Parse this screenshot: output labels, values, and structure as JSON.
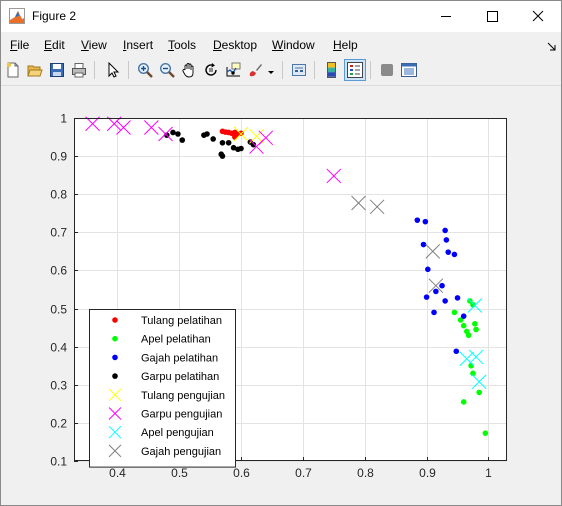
{
  "window": {
    "title": "Figure 2"
  },
  "menu": [
    {
      "key": "F",
      "rest": "ile"
    },
    {
      "key": "E",
      "rest": "dit"
    },
    {
      "key": "V",
      "rest": "iew"
    },
    {
      "key": "I",
      "rest": "nsert"
    },
    {
      "key": "T",
      "rest": "ools"
    },
    {
      "key": "D",
      "rest": "esktop"
    },
    {
      "key": "W",
      "rest": "indow"
    },
    {
      "key": "H",
      "rest": "elp"
    }
  ],
  "toolbar": [
    "new-figure-icon",
    "open-file-icon",
    "save-icon",
    "print-icon",
    "select-arrow-icon",
    "zoom-in-icon",
    "zoom-out-icon",
    "pan-hand-icon",
    "rotate-3d-icon",
    "data-cursor-icon",
    "brush-icon",
    "link-plot-icon",
    "colorbar-icon",
    "legend-icon",
    "hide-plot-tools-icon",
    "show-plot-tools-icon"
  ],
  "chart_data": {
    "type": "scatter",
    "title": "",
    "xlabel": "",
    "ylabel": "",
    "xlim": [
      0.33,
      1.03
    ],
    "ylim": [
      0.1,
      1.0
    ],
    "xticks": [
      "0.4",
      "0.5",
      "0.6",
      "0.7",
      "0.8",
      "0.9",
      "1"
    ],
    "yticks": [
      "0.1",
      "0.2",
      "0.3",
      "0.4",
      "0.5",
      "0.6",
      "0.7",
      "0.8",
      "0.9",
      "1"
    ],
    "grid": true,
    "legend_position": "bottom-left",
    "series": [
      {
        "name": "Tulang pelatihan",
        "marker": "dot",
        "color": "#ff0000",
        "points": [
          [
            0.57,
            0.965
          ],
          [
            0.575,
            0.963
          ],
          [
            0.58,
            0.962
          ],
          [
            0.585,
            0.96
          ],
          [
            0.59,
            0.962
          ],
          [
            0.595,
            0.958
          ],
          [
            0.6,
            0.96
          ],
          [
            0.59,
            0.95
          ]
        ]
      },
      {
        "name": "Apel pelatihan",
        "marker": "dot",
        "color": "#00ff00",
        "points": [
          [
            0.945,
            0.49
          ],
          [
            0.955,
            0.47
          ],
          [
            0.96,
            0.455
          ],
          [
            0.965,
            0.44
          ],
          [
            0.968,
            0.43
          ],
          [
            0.97,
            0.52
          ],
          [
            0.975,
            0.51
          ],
          [
            0.978,
            0.46
          ],
          [
            0.98,
            0.445
          ],
          [
            0.972,
            0.35
          ],
          [
            0.975,
            0.33
          ],
          [
            0.985,
            0.28
          ],
          [
            0.96,
            0.255
          ],
          [
            0.995,
            0.173
          ]
        ]
      },
      {
        "name": "Gajah pelatihan",
        "marker": "dot",
        "color": "#0000ff",
        "points": [
          [
            0.885,
            0.732
          ],
          [
            0.898,
            0.728
          ],
          [
            0.93,
            0.705
          ],
          [
            0.932,
            0.68
          ],
          [
            0.895,
            0.668
          ],
          [
            0.935,
            0.648
          ],
          [
            0.945,
            0.642
          ],
          [
            0.902,
            0.603
          ],
          [
            0.9,
            0.53
          ],
          [
            0.915,
            0.545
          ],
          [
            0.925,
            0.56
          ],
          [
            0.93,
            0.52
          ],
          [
            0.95,
            0.528
          ],
          [
            0.912,
            0.49
          ],
          [
            0.96,
            0.48
          ],
          [
            0.948,
            0.388
          ]
        ]
      },
      {
        "name": "Garpu pelatihan",
        "marker": "dot",
        "color": "#000000",
        "points": [
          [
            0.48,
            0.955
          ],
          [
            0.49,
            0.962
          ],
          [
            0.498,
            0.958
          ],
          [
            0.505,
            0.942
          ],
          [
            0.54,
            0.955
          ],
          [
            0.545,
            0.958
          ],
          [
            0.555,
            0.945
          ],
          [
            0.57,
            0.935
          ],
          [
            0.58,
            0.935
          ],
          [
            0.588,
            0.922
          ],
          [
            0.595,
            0.918
          ],
          [
            0.6,
            0.92
          ],
          [
            0.568,
            0.905
          ],
          [
            0.57,
            0.9
          ],
          [
            0.615,
            0.937
          ],
          [
            0.62,
            0.93
          ]
        ]
      },
      {
        "name": "Tulang pengujian",
        "marker": "x",
        "color": "#ffff00",
        "points": [
          [
            0.6,
            0.958
          ],
          [
            0.625,
            0.952
          ]
        ]
      },
      {
        "name": "Garpu pengujian",
        "marker": "x",
        "color": "#ff00ff",
        "points": [
          [
            0.36,
            0.985
          ],
          [
            0.395,
            0.985
          ],
          [
            0.41,
            0.975
          ],
          [
            0.455,
            0.975
          ],
          [
            0.478,
            0.958
          ],
          [
            0.625,
            0.925
          ],
          [
            0.64,
            0.948
          ],
          [
            0.75,
            0.848
          ]
        ]
      },
      {
        "name": "Apel pengujian",
        "marker": "x",
        "color": "#00ffff",
        "points": [
          [
            0.978,
            0.508
          ],
          [
            0.965,
            0.368
          ],
          [
            0.98,
            0.373
          ],
          [
            0.985,
            0.308
          ]
        ]
      },
      {
        "name": "Gajah pengujian",
        "marker": "x",
        "color": "#808080",
        "points": [
          [
            0.79,
            0.777
          ],
          [
            0.82,
            0.767
          ],
          [
            0.91,
            0.65
          ],
          [
            0.915,
            0.56
          ]
        ]
      }
    ]
  }
}
